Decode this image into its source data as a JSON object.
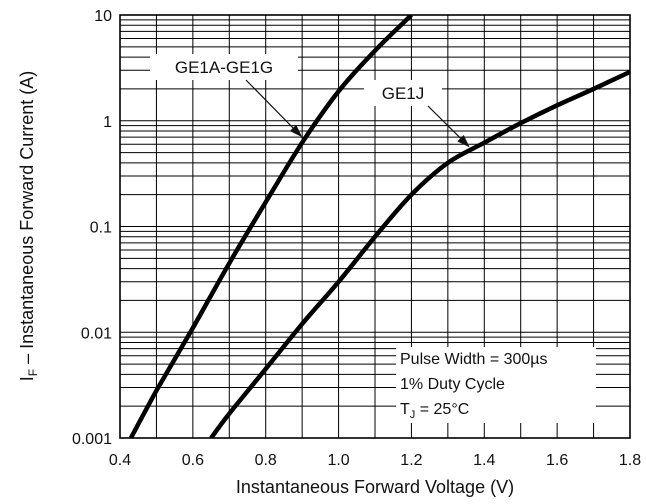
{
  "chart_data": {
    "type": "line",
    "xlabel": "Instantaneous Forward Voltage (V)",
    "ylabel_main": "I",
    "ylabel_sub": "F",
    "ylabel_rest": " – Instantaneous Forward Current (A)",
    "xlim": [
      0.4,
      1.8
    ],
    "ylim": [
      0.001,
      10
    ],
    "yscale": "log",
    "grid": true,
    "x_ticks": [
      {
        "v": 0.4,
        "label": "0.4"
      },
      {
        "v": 0.6,
        "label": "0.6"
      },
      {
        "v": 0.8,
        "label": "0.8"
      },
      {
        "v": 1.0,
        "label": "1.0"
      },
      {
        "v": 1.2,
        "label": "1.2"
      },
      {
        "v": 1.4,
        "label": "1.4"
      },
      {
        "v": 1.6,
        "label": "1.6"
      },
      {
        "v": 1.8,
        "label": "1.8"
      }
    ],
    "y_ticks": [
      {
        "v": 0.001,
        "label": "0.001"
      },
      {
        "v": 0.01,
        "label": "0.01"
      },
      {
        "v": 0.1,
        "label": "0.1"
      },
      {
        "v": 1,
        "label": "1"
      },
      {
        "v": 10,
        "label": "10"
      }
    ],
    "series": [
      {
        "name": "GE1A-GE1G",
        "x": [
          0.43,
          0.5,
          0.6,
          0.7,
          0.8,
          0.9,
          1.0,
          1.1,
          1.2
        ],
        "y": [
          0.001,
          0.0028,
          0.011,
          0.045,
          0.17,
          0.62,
          1.9,
          4.6,
          10
        ]
      },
      {
        "name": "GE1J",
        "x": [
          0.65,
          0.7,
          0.8,
          0.9,
          1.0,
          1.1,
          1.2,
          1.3,
          1.4,
          1.5,
          1.6,
          1.7,
          1.8
        ],
        "y": [
          0.001,
          0.0017,
          0.0045,
          0.012,
          0.03,
          0.08,
          0.2,
          0.4,
          0.62,
          0.95,
          1.4,
          2.0,
          2.9
        ]
      }
    ],
    "annotations": {
      "label_a": "GE1A-GE1G",
      "label_b": "GE1J",
      "pointer_a_at": [
        0.9,
        0.7
      ],
      "pointer_b_at": [
        1.36,
        0.56
      ],
      "note_line1": "Pulse Width = 300µs",
      "note_line2": "1% Duty Cycle",
      "note_line3_main": "T",
      "note_line3_sub": "J",
      "note_line3_rest": " = 25°C"
    }
  }
}
